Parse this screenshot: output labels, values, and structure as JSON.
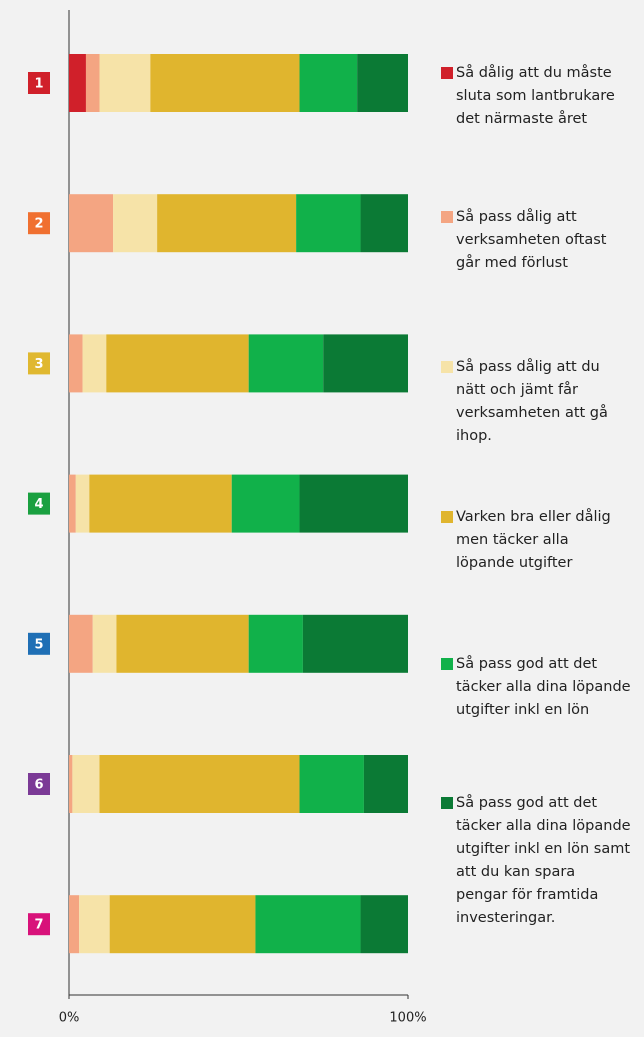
{
  "chart_data": {
    "type": "bar",
    "orientation": "horizontal",
    "stacked": true,
    "categories": [
      "1",
      "2",
      "3",
      "4",
      "5",
      "6",
      "7"
    ],
    "category_colors": [
      "#d0202a",
      "#f07030",
      "#e0b830",
      "#1aa040",
      "#1f6fb5",
      "#7b3a96",
      "#d8127a"
    ],
    "series": [
      {
        "name": "Så dålig att du måste sluta som lantbrukare det närmaste året",
        "color": "#d0202a",
        "values": [
          5,
          0,
          0,
          0,
          0,
          0,
          0
        ]
      },
      {
        "name": "Så pass dålig att verksamheten oftast går med förlust",
        "color": "#f4a582",
        "values": [
          4,
          13,
          4,
          2,
          7,
          1,
          3
        ]
      },
      {
        "name": "Så pass dålig att du nätt och jämt får verksamheten att gå ihop.",
        "color": "#f6e3a8",
        "values": [
          15,
          13,
          7,
          4,
          7,
          8,
          9
        ]
      },
      {
        "name": "Varken bra eller dålig men täcker alla löpande utgifter",
        "color": "#e0b52e",
        "values": [
          44,
          41,
          42,
          42,
          39,
          59,
          43
        ]
      },
      {
        "name": "Så pass god att det täcker alla dina löpande utgifter inkl en lön",
        "color": "#11b14a",
        "values": [
          17,
          19,
          22,
          20,
          16,
          19,
          31
        ]
      },
      {
        "name": "Så pass god att det täcker alla dina löpande utgifter inkl en lön samt att du kan spara pengar för framtida investeringar.",
        "color": "#0b7a35",
        "values": [
          15,
          14,
          25,
          32,
          31,
          13,
          14
        ]
      }
    ],
    "xlim": [
      0,
      100
    ],
    "xticks": [
      {
        "value": 0,
        "label": "0%"
      },
      {
        "value": 100,
        "label": "100%"
      }
    ]
  }
}
